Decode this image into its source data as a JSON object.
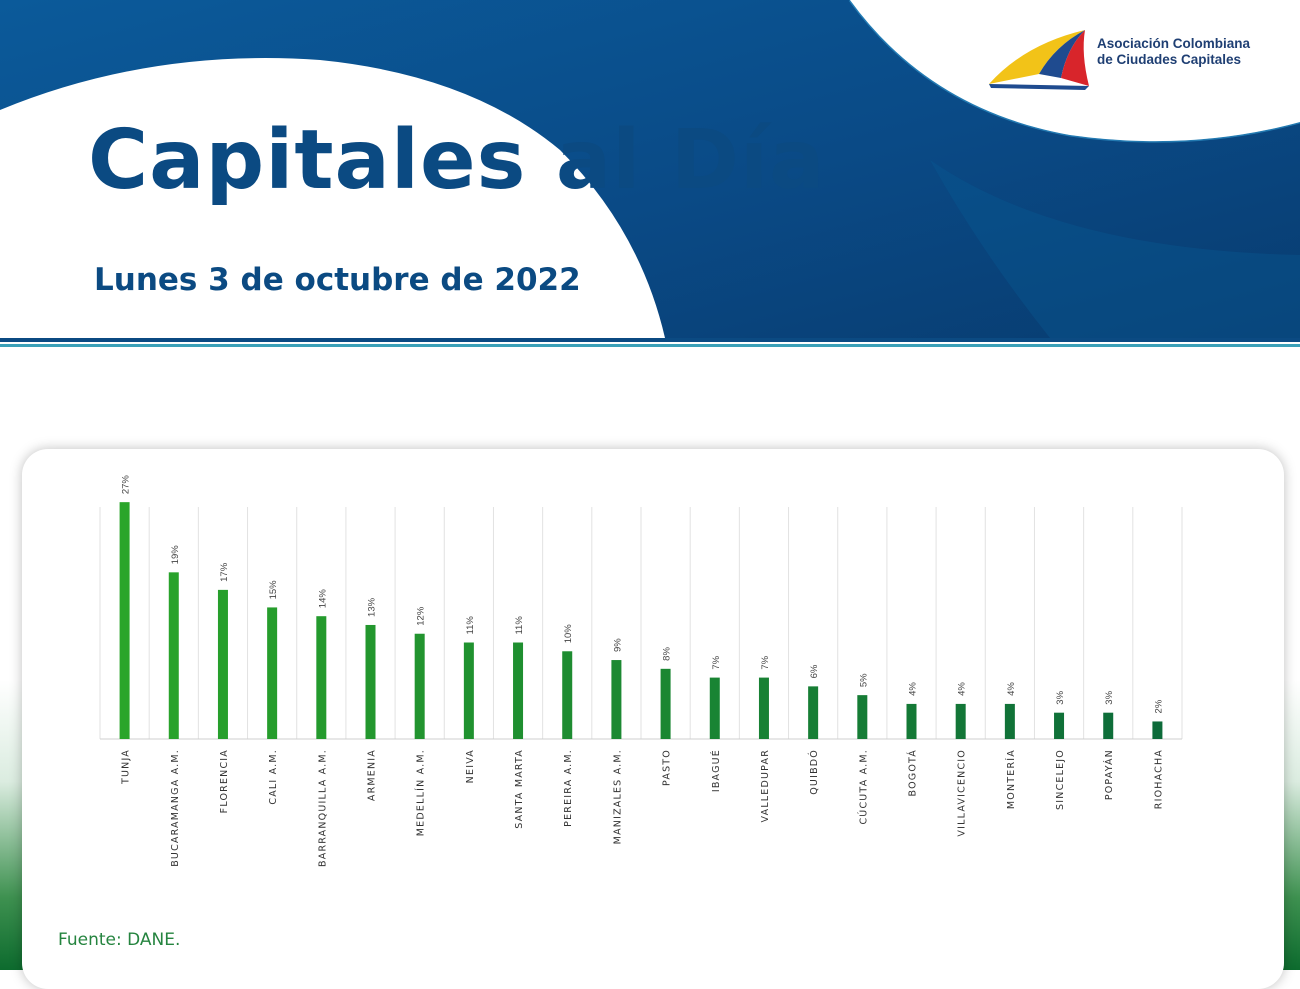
{
  "header": {
    "title": "Capitales al Día",
    "date": "Lunes 3 de octubre de 2022",
    "logo_line1": "Asociación Colombiana",
    "logo_line2": "de Ciudades Capitales"
  },
  "colors": {
    "brand_blue": "#0b4a82",
    "bar_green_light": "#2aa52a",
    "bar_green_dark": "#0d6b3a",
    "source_green": "#25843f"
  },
  "chart_data": {
    "type": "bar",
    "categories": [
      "TUNJA",
      "BUCARAMANGA A.M.",
      "FLORENCIA",
      "CALI A.M.",
      "BARRANQUILLA A.M.",
      "ARMENIA",
      "MEDELLÍN A.M.",
      "NEIVA",
      "SANTA MARTA",
      "PEREIRA A.M.",
      "MANIZALES A.M.",
      "PASTO",
      "IBAGUÉ",
      "VALLEDUPAR",
      "QUIBDÓ",
      "CÚCUTA A.M.",
      "BOGOTÁ",
      "VILLAVICENCIO",
      "MONTERÍA",
      "SINCELEJO",
      "POPAYÁN",
      "RIOHACHA"
    ],
    "values": [
      27,
      19,
      17,
      15,
      14,
      13,
      12,
      11,
      11,
      10,
      9,
      8,
      7,
      7,
      6,
      5,
      4,
      4,
      4,
      3,
      3,
      2
    ],
    "labels": [
      "27%",
      "19%",
      "17%",
      "15%",
      "14%",
      "13%",
      "12%",
      "11%",
      "11%",
      "10%",
      "9%",
      "8%",
      "7%",
      "7%",
      "6%",
      "5%",
      "4%",
      "4%",
      "4%",
      "3%",
      "3%",
      "2%"
    ],
    "ylim": [
      0,
      28.5
    ],
    "grid": "vertical",
    "legend": "none",
    "source": "Fuente: DANE."
  }
}
